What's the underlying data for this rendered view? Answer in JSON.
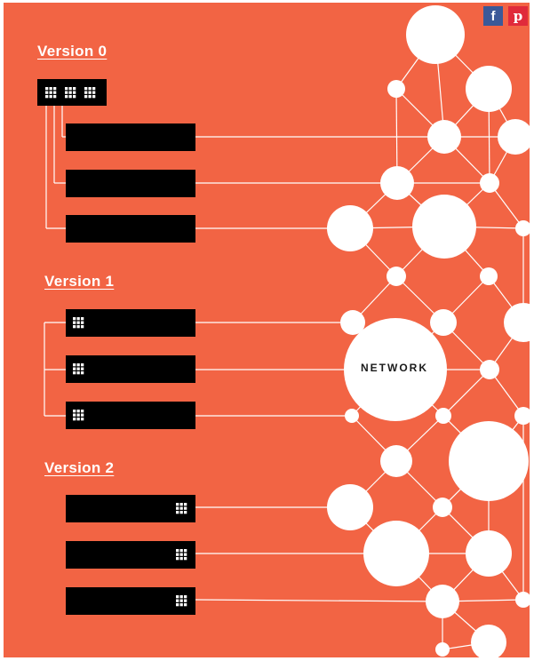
{
  "versions": [
    {
      "label": "Version 0"
    },
    {
      "label": "Version 1"
    },
    {
      "label": "Version 2"
    }
  ],
  "network": {
    "label": "NETWORK"
  },
  "social": {
    "facebook": "f",
    "pinterest": "p"
  },
  "colors": {
    "background": "#F26444",
    "node": "#FFFFFF",
    "block": "#000000",
    "facebook": "#3B5998",
    "pinterest": "#E02A3B"
  }
}
